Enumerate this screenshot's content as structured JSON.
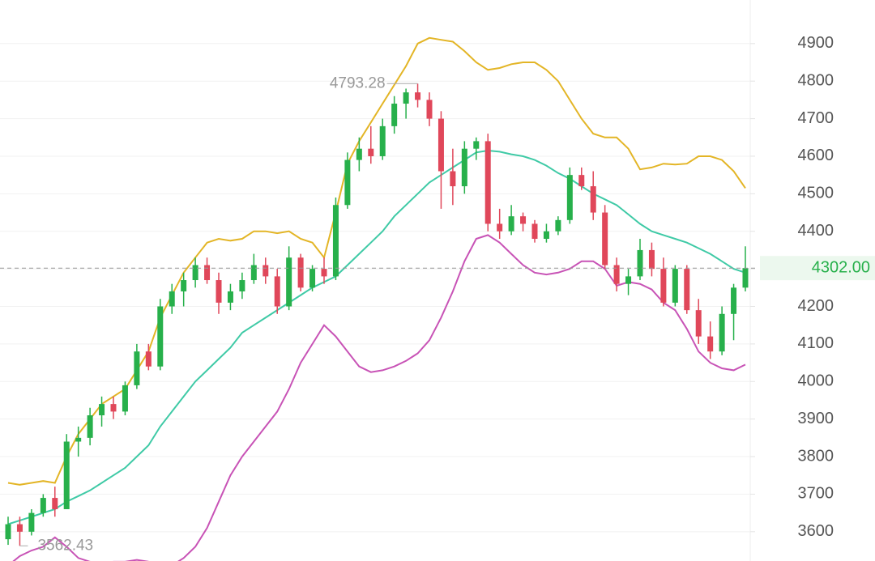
{
  "chart_data": {
    "type": "candlestick",
    "ylim": [
      3522,
      5016
    ],
    "yticks": [
      3600,
      3700,
      3800,
      3900,
      4000,
      4100,
      4200,
      4300,
      4400,
      4500,
      4600,
      4700,
      4800,
      4900
    ],
    "grid": true,
    "up_color": "#27b04b",
    "down_color": "#e0475a",
    "open": [
      3580,
      3620,
      3600,
      3650,
      3690,
      3660,
      3840,
      3850,
      3910,
      3940,
      3920,
      3990,
      4080,
      4040,
      4200,
      4240,
      4270,
      4310,
      4270,
      4210,
      4240,
      4270,
      4310,
      4280,
      4200,
      4330,
      4250,
      4300,
      4280,
      4470,
      4590,
      4620,
      4600,
      4680,
      4740,
      4770,
      4750,
      4700,
      4560,
      4520,
      4620,
      4640,
      4420,
      4400,
      4440,
      4420,
      4380,
      4400,
      4430,
      4550,
      4520,
      4450,
      4310,
      4260,
      4280,
      4350,
      4300,
      4210,
      4300,
      4190,
      4120,
      4080,
      4180,
      4250
    ],
    "high": [
      3640,
      3640,
      3660,
      3700,
      3720,
      3860,
      3880,
      3930,
      3960,
      3960,
      4000,
      4100,
      4100,
      4220,
      4260,
      4290,
      4330,
      4330,
      4290,
      4260,
      4290,
      4340,
      4330,
      4300,
      4360,
      4340,
      4310,
      4330,
      4490,
      4610,
      4650,
      4680,
      4700,
      4760,
      4780,
      4793.28,
      4770,
      4720,
      4620,
      4640,
      4650,
      4660,
      4460,
      4470,
      4450,
      4430,
      4420,
      4440,
      4570,
      4570,
      4560,
      4470,
      4330,
      4300,
      4380,
      4370,
      4330,
      4310,
      4310,
      4220,
      4160,
      4200,
      4260,
      4360
    ],
    "low": [
      3565,
      3562.43,
      3590,
      3640,
      3640,
      3660,
      3800,
      3830,
      3880,
      3900,
      3910,
      3980,
      4030,
      4030,
      4180,
      4200,
      4250,
      4260,
      4180,
      4190,
      4220,
      4260,
      4260,
      4180,
      4190,
      4240,
      4240,
      4260,
      4270,
      4460,
      4560,
      4580,
      4590,
      4660,
      4700,
      4730,
      4680,
      4460,
      4470,
      4500,
      4590,
      4400,
      4380,
      4390,
      4400,
      4370,
      4370,
      4390,
      4420,
      4510,
      4430,
      4300,
      4240,
      4230,
      4270,
      4280,
      4200,
      4200,
      4180,
      4100,
      4060,
      4070,
      4110,
      4240
    ],
    "close": [
      3620,
      3600,
      3650,
      3690,
      3660,
      3840,
      3850,
      3910,
      3940,
      3920,
      3990,
      4080,
      4040,
      4200,
      4240,
      4270,
      4310,
      4270,
      4210,
      4240,
      4270,
      4310,
      4280,
      4200,
      4330,
      4250,
      4300,
      4280,
      4470,
      4590,
      4620,
      4600,
      4680,
      4740,
      4770,
      4750,
      4700,
      4560,
      4520,
      4620,
      4640,
      4420,
      4400,
      4440,
      4420,
      4380,
      4400,
      4430,
      4550,
      4520,
      4450,
      4310,
      4260,
      4280,
      4350,
      4300,
      4210,
      4300,
      4190,
      4120,
      4080,
      4180,
      4250,
      4302
    ],
    "series": [
      {
        "color": "#e3b526",
        "values": [
          3730,
          3725,
          3730,
          3735,
          3730,
          3800,
          3860,
          3900,
          3940,
          3960,
          3980,
          4030,
          4080,
          4170,
          4230,
          4290,
          4330,
          4370,
          4380,
          4375,
          4380,
          4400,
          4400,
          4395,
          4400,
          4380,
          4370,
          4330,
          4450,
          4580,
          4640,
          4690,
          4740,
          4790,
          4840,
          4900,
          4915,
          4910,
          4905,
          4880,
          4850,
          4830,
          4835,
          4845,
          4850,
          4850,
          4830,
          4800,
          4750,
          4700,
          4660,
          4650,
          4650,
          4620,
          4565,
          4570,
          4580,
          4578,
          4580,
          4600,
          4600,
          4590,
          4560,
          4515
        ]
      },
      {
        "color": "#3fcaa6",
        "values": [
          3620,
          3630,
          3640,
          3650,
          3660,
          3680,
          3695,
          3710,
          3730,
          3750,
          3770,
          3800,
          3830,
          3880,
          3920,
          3960,
          4000,
          4030,
          4060,
          4090,
          4130,
          4150,
          4170,
          4190,
          4210,
          4230,
          4250,
          4265,
          4280,
          4310,
          4340,
          4370,
          4400,
          4440,
          4470,
          4500,
          4530,
          4550,
          4570,
          4590,
          4610,
          4615,
          4612,
          4605,
          4600,
          4590,
          4575,
          4555,
          4540,
          4520,
          4500,
          4485,
          4470,
          4445,
          4420,
          4400,
          4390,
          4380,
          4370,
          4355,
          4340,
          4320,
          4300,
          4290
        ]
      },
      {
        "color": "#c853b6",
        "values": [
          3510,
          3535,
          3550,
          3560,
          3585,
          3560,
          3530,
          3520,
          3515,
          3520,
          3520,
          3525,
          3520,
          3505,
          3510,
          3530,
          3560,
          3610,
          3680,
          3750,
          3800,
          3840,
          3880,
          3920,
          3980,
          4050,
          4100,
          4150,
          4120,
          4080,
          4040,
          4025,
          4030,
          4040,
          4055,
          4075,
          4110,
          4170,
          4240,
          4320,
          4380,
          4390,
          4370,
          4340,
          4310,
          4290,
          4285,
          4290,
          4300,
          4320,
          4320,
          4300,
          4255,
          4265,
          4260,
          4245,
          4210,
          4190,
          4140,
          4080,
          4050,
          4035,
          4030,
          4045
        ]
      }
    ],
    "last_price": {
      "value": 4302,
      "label": "4302.00"
    }
  }
}
